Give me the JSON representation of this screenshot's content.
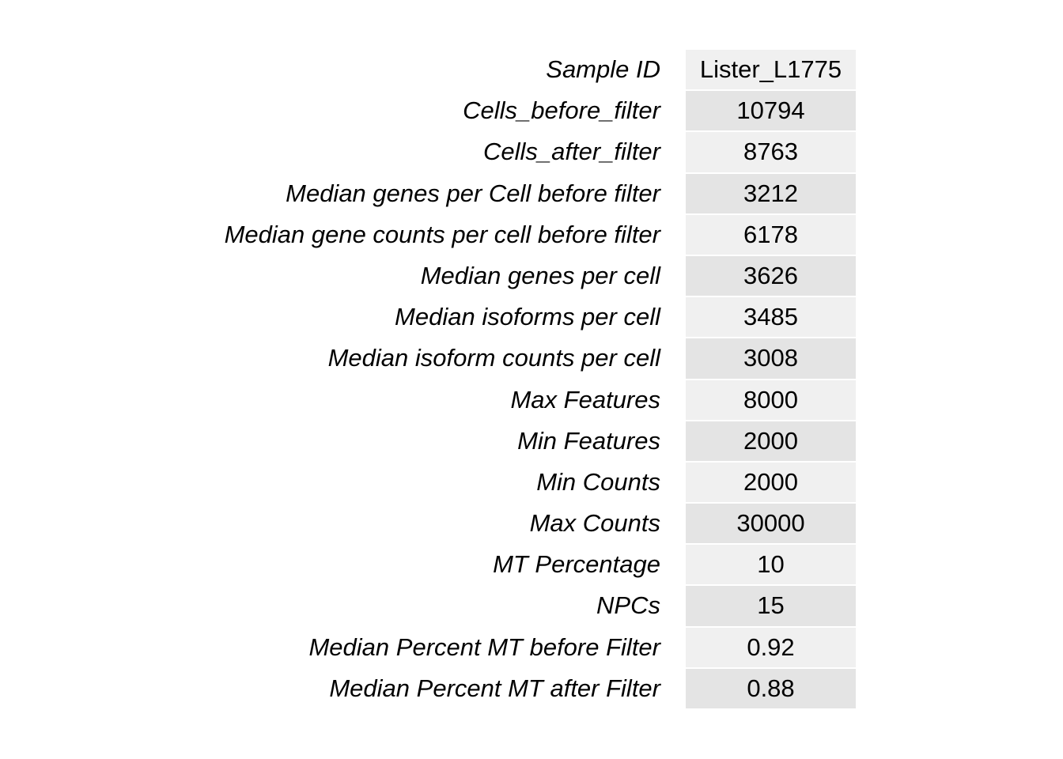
{
  "chart_data": {
    "type": "table",
    "rows": [
      {
        "label": "Sample ID",
        "value": "Lister_L1775"
      },
      {
        "label": "Cells_before_filter",
        "value": "10794"
      },
      {
        "label": "Cells_after_filter",
        "value": "8763"
      },
      {
        "label": "Median genes per Cell before filter",
        "value": "3212"
      },
      {
        "label": "Median gene counts per cell before filter",
        "value": "6178"
      },
      {
        "label": "Median genes per cell",
        "value": "3626"
      },
      {
        "label": "Median isoforms per cell",
        "value": "3485"
      },
      {
        "label": "Median isoform counts per cell",
        "value": "3008"
      },
      {
        "label": "Max Features",
        "value": "8000"
      },
      {
        "label": "Min Features",
        "value": "2000"
      },
      {
        "label": "Min Counts",
        "value": "2000"
      },
      {
        "label": "Max Counts",
        "value": "30000"
      },
      {
        "label": "MT Percentage",
        "value": "10"
      },
      {
        "label": "NPCs",
        "value": "15"
      },
      {
        "label": "Median Percent MT before Filter",
        "value": "0.92"
      },
      {
        "label": "Median Percent MT after Filter",
        "value": "0.88"
      }
    ],
    "colors": {
      "cell_light": "#f0f0f0",
      "cell_dark": "#e4e4e4",
      "text": "#000000"
    }
  }
}
